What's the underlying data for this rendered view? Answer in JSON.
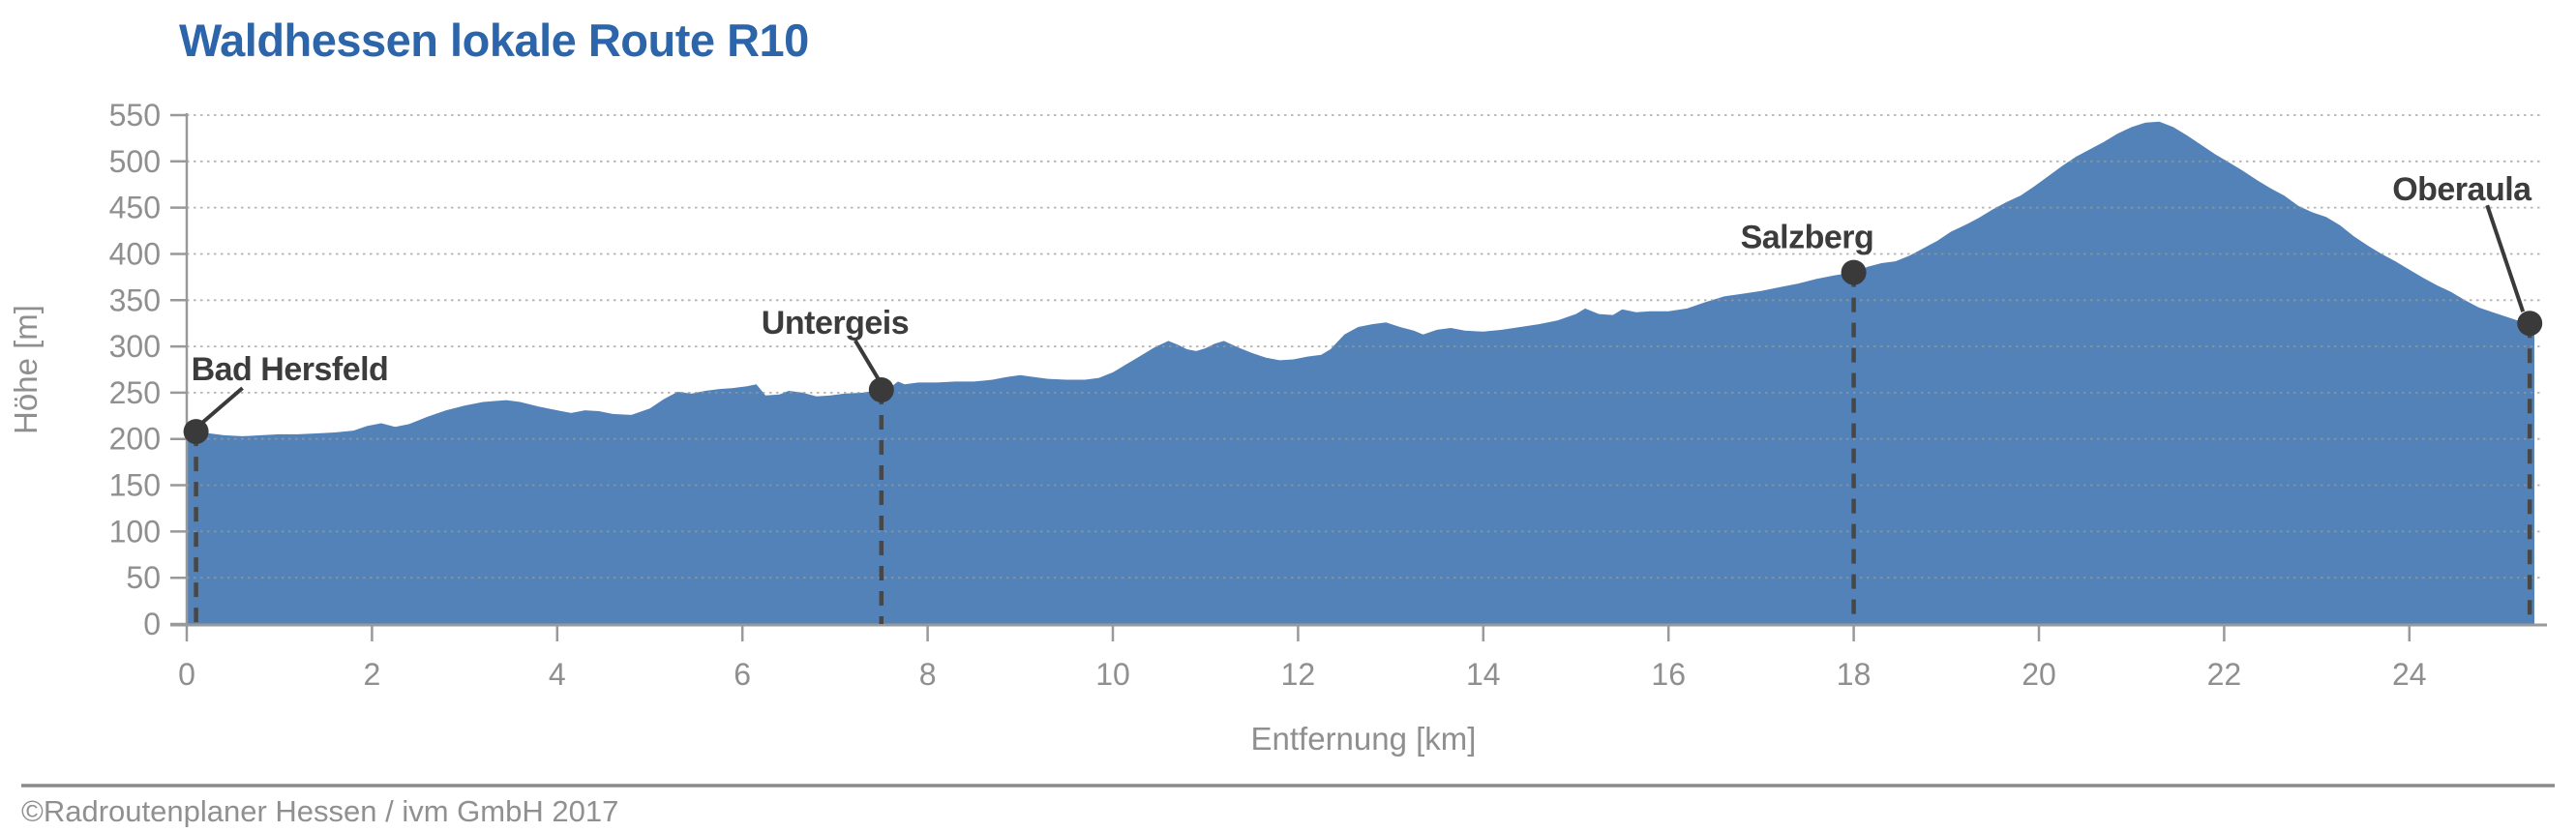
{
  "chart_data": {
    "type": "area",
    "title": "Waldhessen lokale Route R10",
    "xlabel": "Entfernung [km]",
    "ylabel": "Höhe [m]",
    "footer": "©Radroutenplaner Hessen / ivm GmbH 2017",
    "xlim": [
      0,
      25.35
    ],
    "ylim": [
      0,
      550
    ],
    "x_ticks": [
      0,
      2,
      4,
      6,
      8,
      10,
      12,
      14,
      16,
      18,
      20,
      22,
      24
    ],
    "y_ticks": [
      0,
      50,
      100,
      150,
      200,
      250,
      300,
      350,
      400,
      450,
      500,
      550
    ],
    "grid": "horizontal-dotted",
    "legend": "none",
    "colors": {
      "title": "#2c65a9",
      "area_fill": "#5282b8",
      "axis": "#999999",
      "tick_text": "#8f8f8f",
      "gridline": "#9a9a9a",
      "waypoint_marker": "#3a3a3a",
      "waypoint_dash": "#474747"
    },
    "series": [
      {
        "name": "Höhenprofil",
        "x_unit": "km",
        "y_unit": "m",
        "points": [
          [
            0.0,
            210
          ],
          [
            0.1,
            208
          ],
          [
            0.25,
            206
          ],
          [
            0.4,
            204
          ],
          [
            0.6,
            203
          ],
          [
            0.8,
            204
          ],
          [
            1.0,
            205
          ],
          [
            1.2,
            205
          ],
          [
            1.4,
            206
          ],
          [
            1.6,
            207
          ],
          [
            1.8,
            209
          ],
          [
            1.95,
            214
          ],
          [
            2.1,
            217
          ],
          [
            2.25,
            213
          ],
          [
            2.4,
            216
          ],
          [
            2.6,
            224
          ],
          [
            2.8,
            231
          ],
          [
            3.0,
            236
          ],
          [
            3.2,
            240
          ],
          [
            3.45,
            242
          ],
          [
            3.6,
            240
          ],
          [
            3.8,
            235
          ],
          [
            4.0,
            231
          ],
          [
            4.15,
            228
          ],
          [
            4.3,
            231
          ],
          [
            4.45,
            230
          ],
          [
            4.6,
            227
          ],
          [
            4.8,
            226
          ],
          [
            5.0,
            233
          ],
          [
            5.15,
            243
          ],
          [
            5.3,
            251
          ],
          [
            5.45,
            249
          ],
          [
            5.6,
            252
          ],
          [
            5.75,
            254
          ],
          [
            5.9,
            255
          ],
          [
            6.05,
            257
          ],
          [
            6.15,
            259
          ],
          [
            6.25,
            247
          ],
          [
            6.4,
            248
          ],
          [
            6.5,
            252
          ],
          [
            6.65,
            250
          ],
          [
            6.8,
            246
          ],
          [
            6.95,
            247
          ],
          [
            7.1,
            249
          ],
          [
            7.3,
            250
          ],
          [
            7.5,
            253
          ],
          [
            7.6,
            256
          ],
          [
            7.68,
            262
          ],
          [
            7.75,
            259
          ],
          [
            7.9,
            261
          ],
          [
            8.1,
            261
          ],
          [
            8.3,
            262
          ],
          [
            8.5,
            262
          ],
          [
            8.7,
            264
          ],
          [
            8.85,
            267
          ],
          [
            9.0,
            269
          ],
          [
            9.15,
            267
          ],
          [
            9.3,
            265
          ],
          [
            9.5,
            264
          ],
          [
            9.7,
            264
          ],
          [
            9.85,
            266
          ],
          [
            10.0,
            272
          ],
          [
            10.15,
            281
          ],
          [
            10.3,
            290
          ],
          [
            10.45,
            299
          ],
          [
            10.6,
            306
          ],
          [
            10.7,
            302
          ],
          [
            10.8,
            297
          ],
          [
            10.9,
            295
          ],
          [
            11.0,
            298
          ],
          [
            11.1,
            303
          ],
          [
            11.2,
            306
          ],
          [
            11.35,
            299
          ],
          [
            11.5,
            293
          ],
          [
            11.65,
            288
          ],
          [
            11.8,
            285
          ],
          [
            11.95,
            286
          ],
          [
            12.1,
            289
          ],
          [
            12.25,
            291
          ],
          [
            12.35,
            297
          ],
          [
            12.5,
            313
          ],
          [
            12.65,
            321
          ],
          [
            12.8,
            324
          ],
          [
            12.95,
            326
          ],
          [
            13.1,
            321
          ],
          [
            13.25,
            317
          ],
          [
            13.35,
            313
          ],
          [
            13.5,
            318
          ],
          [
            13.65,
            320
          ],
          [
            13.8,
            317
          ],
          [
            14.0,
            316
          ],
          [
            14.2,
            318
          ],
          [
            14.4,
            321
          ],
          [
            14.6,
            324
          ],
          [
            14.8,
            328
          ],
          [
            15.0,
            335
          ],
          [
            15.1,
            341
          ],
          [
            15.25,
            335
          ],
          [
            15.4,
            334
          ],
          [
            15.5,
            340
          ],
          [
            15.65,
            337
          ],
          [
            15.8,
            338
          ],
          [
            16.0,
            338
          ],
          [
            16.2,
            341
          ],
          [
            16.4,
            348
          ],
          [
            16.6,
            354
          ],
          [
            16.8,
            357
          ],
          [
            17.0,
            360
          ],
          [
            17.2,
            364
          ],
          [
            17.4,
            368
          ],
          [
            17.6,
            373
          ],
          [
            17.8,
            377
          ],
          [
            18.0,
            380
          ],
          [
            18.15,
            386
          ],
          [
            18.3,
            390
          ],
          [
            18.45,
            392
          ],
          [
            18.6,
            398
          ],
          [
            18.75,
            406
          ],
          [
            18.9,
            414
          ],
          [
            19.05,
            424
          ],
          [
            19.2,
            431
          ],
          [
            19.35,
            439
          ],
          [
            19.5,
            448
          ],
          [
            19.65,
            456
          ],
          [
            19.8,
            463
          ],
          [
            19.95,
            473
          ],
          [
            20.1,
            484
          ],
          [
            20.25,
            495
          ],
          [
            20.4,
            505
          ],
          [
            20.55,
            513
          ],
          [
            20.7,
            521
          ],
          [
            20.85,
            530
          ],
          [
            21.0,
            537
          ],
          [
            21.15,
            542
          ],
          [
            21.3,
            543
          ],
          [
            21.45,
            537
          ],
          [
            21.6,
            528
          ],
          [
            21.75,
            518
          ],
          [
            21.9,
            508
          ],
          [
            22.05,
            499
          ],
          [
            22.2,
            490
          ],
          [
            22.35,
            480
          ],
          [
            22.5,
            471
          ],
          [
            22.65,
            463
          ],
          [
            22.8,
            452
          ],
          [
            22.95,
            445
          ],
          [
            23.1,
            440
          ],
          [
            23.25,
            431
          ],
          [
            23.4,
            419
          ],
          [
            23.55,
            409
          ],
          [
            23.7,
            400
          ],
          [
            23.85,
            392
          ],
          [
            24.0,
            383
          ],
          [
            24.15,
            374
          ],
          [
            24.3,
            366
          ],
          [
            24.45,
            359
          ],
          [
            24.6,
            350
          ],
          [
            24.75,
            342
          ],
          [
            24.9,
            337
          ],
          [
            25.05,
            332
          ],
          [
            25.2,
            327
          ],
          [
            25.3,
            325
          ],
          [
            25.35,
            321
          ]
        ]
      }
    ],
    "waypoints": [
      {
        "name": "Bad Hersfeld",
        "km": 0.1,
        "elevation_m": 208
      },
      {
        "name": "Untergeis",
        "km": 7.5,
        "elevation_m": 253
      },
      {
        "name": "Salzberg",
        "km": 18.0,
        "elevation_m": 380
      },
      {
        "name": "Oberaula",
        "km": 25.3,
        "elevation_m": 325
      }
    ]
  }
}
